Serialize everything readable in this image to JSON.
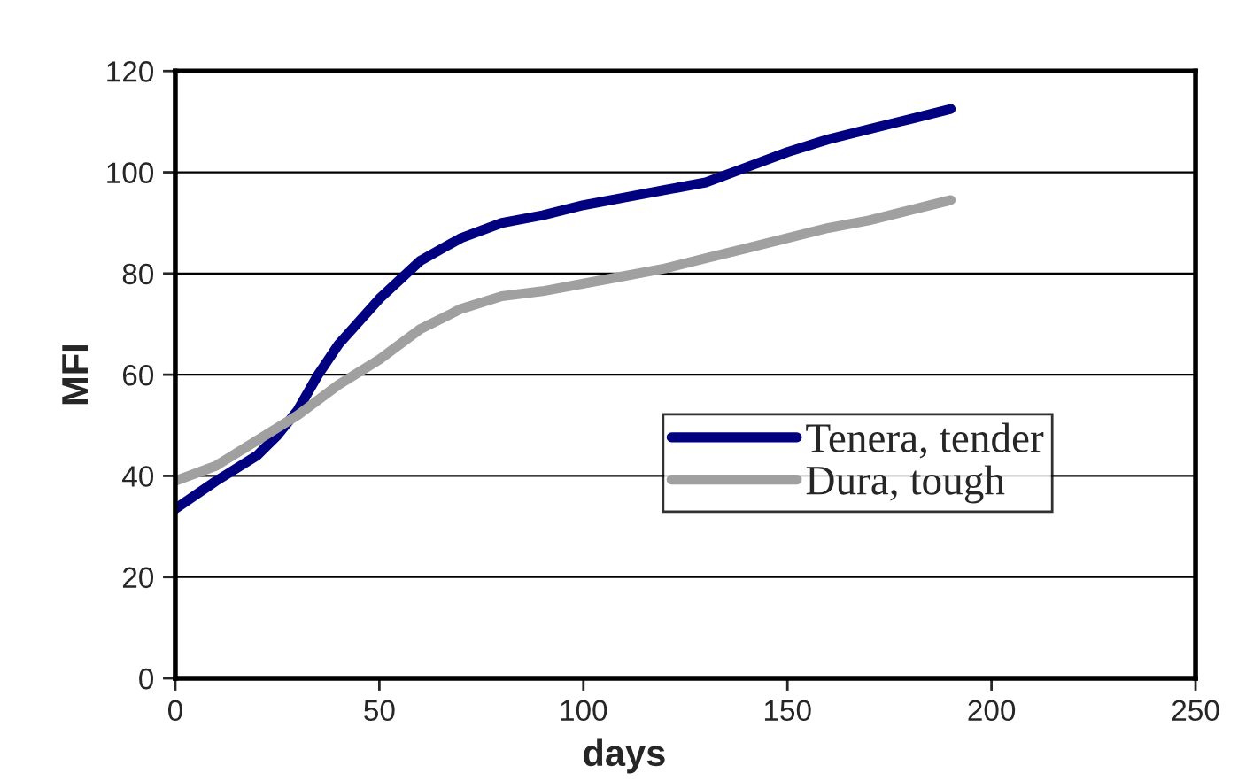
{
  "chart_data": {
    "type": "line",
    "xlabel": "days",
    "ylabel": "MFI",
    "xlim": [
      0,
      250
    ],
    "xticks": [
      0,
      50,
      100,
      150,
      200,
      250
    ],
    "ylim": [
      0,
      120
    ],
    "yticks": [
      0,
      20,
      40,
      60,
      80,
      100,
      120
    ],
    "grid": "y",
    "legend": "bottom right",
    "line_style": "solid",
    "marker": "none",
    "series": [
      {
        "name": "Tenera, tender",
        "color": "#000080",
        "x": [
          0,
          10,
          20,
          25,
          30,
          35,
          40,
          50,
          60,
          70,
          80,
          90,
          100,
          110,
          120,
          130,
          140,
          150,
          160,
          170,
          180,
          190
        ],
        "values": [
          33.5,
          39,
          44,
          48,
          53,
          60,
          66,
          75,
          82.5,
          87,
          90,
          91.5,
          93.5,
          95,
          96.5,
          98,
          101,
          104,
          106.5,
          108.5,
          110.5,
          112.5
        ]
      },
      {
        "name": "Dura, tough",
        "color": "#a0a0a0",
        "x": [
          0,
          10,
          20,
          30,
          40,
          50,
          60,
          70,
          80,
          90,
          100,
          110,
          120,
          130,
          140,
          150,
          160,
          170,
          180,
          190
        ],
        "values": [
          39,
          42,
          47,
          52,
          58,
          63,
          69,
          73,
          75.5,
          76.5,
          78,
          79.5,
          81,
          83,
          85,
          87,
          89,
          90.5,
          92.5,
          94.5
        ]
      }
    ]
  }
}
